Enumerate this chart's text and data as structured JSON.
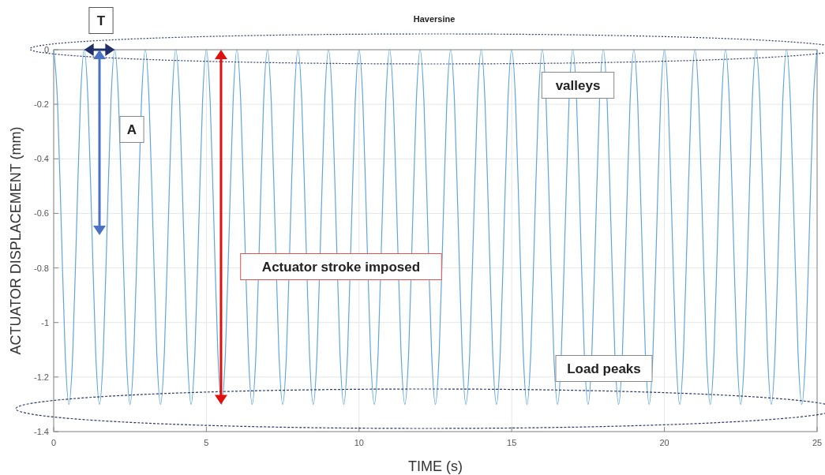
{
  "chart_data": {
    "type": "line",
    "xlabel": "TIME (s)",
    "ylabel": "ACTUATOR DISPLACEMENT (mm)",
    "xlim": [
      0,
      25
    ],
    "ylim": [
      -1.4,
      0
    ],
    "xticks": [
      0,
      5,
      10,
      15,
      20,
      25
    ],
    "yticks": [
      0,
      -0.2,
      -0.4,
      -0.6,
      -0.8,
      -1,
      -1.2,
      -1.4
    ],
    "grid": true,
    "annotations": [
      "T",
      "A",
      "Haversine",
      "valleys",
      "Actuator stroke imposed",
      "Load peaks"
    ],
    "series": [
      {
        "color": "#5fa6dc",
        "x": [
          0,
          0.125,
          0.25,
          0.375,
          0.5,
          0.625,
          0.75,
          0.875,
          1,
          1.125,
          1.25,
          1.375,
          1.5,
          1.625,
          1.75,
          1.875,
          2,
          2.125,
          2.25,
          2.375,
          2.5,
          2.625,
          2.75,
          2.875,
          3,
          3.125,
          3.25,
          3.375,
          3.5,
          3.625,
          3.75,
          3.875,
          4,
          4.125,
          4.25,
          4.375,
          4.5,
          4.625,
          4.75,
          4.875,
          5,
          5.125,
          5.25,
          5.375,
          5.5,
          5.625,
          5.75,
          5.875,
          6,
          6.125,
          6.25,
          6.375,
          6.5,
          6.625,
          6.75,
          6.875,
          7,
          7.125,
          7.25,
          7.375,
          7.5,
          7.625,
          7.75,
          7.875,
          8,
          8.125,
          8.25,
          8.375,
          8.5,
          8.625,
          8.75,
          8.875,
          9,
          9.125,
          9.25,
          9.375,
          9.5,
          9.625,
          9.75,
          9.875,
          10,
          10.125,
          10.25,
          10.375,
          10.5,
          10.625,
          10.75,
          10.875,
          11,
          11.125,
          11.25,
          11.375,
          11.5,
          11.625,
          11.75,
          11.875,
          12,
          12.125,
          12.25,
          12.375,
          12.5,
          12.625,
          12.75,
          12.875,
          13,
          13.125,
          13.25,
          13.375,
          13.5,
          13.625,
          13.75,
          13.875,
          14,
          14.125,
          14.25,
          14.375,
          14.5,
          14.625,
          14.75,
          14.875,
          15,
          15.125,
          15.25,
          15.375,
          15.5,
          15.625,
          15.75,
          15.875,
          16,
          16.125,
          16.25,
          16.375,
          16.5,
          16.625,
          16.75,
          16.875,
          17,
          17.125,
          17.25,
          17.375,
          17.5,
          17.625,
          17.75,
          17.875,
          18,
          18.125,
          18.25,
          18.375,
          18.5,
          18.625,
          18.75,
          18.875,
          19,
          19.125,
          19.25,
          19.375,
          19.5,
          19.625,
          19.75,
          19.875,
          20,
          20.125,
          20.25,
          20.375,
          20.5,
          20.625,
          20.75,
          20.875,
          21,
          21.125,
          21.25,
          21.375,
          21.5,
          21.625,
          21.75,
          21.875,
          22,
          22.125,
          22.25,
          22.375,
          22.5,
          22.625,
          22.75,
          22.875,
          23,
          23.125,
          23.25,
          23.375,
          23.5,
          23.625,
          23.75,
          23.875,
          24,
          24.125,
          24.25,
          24.375,
          24.5,
          24.625,
          24.75,
          24.875,
          25
        ],
        "values": [
          0,
          -0.19,
          -0.65,
          -1.11,
          -1.3,
          -1.11,
          -0.65,
          -0.19,
          0,
          -0.19,
          -0.65,
          -1.11,
          -1.3,
          -1.11,
          -0.65,
          -0.19,
          0,
          -0.19,
          -0.65,
          -1.11,
          -1.3,
          -1.11,
          -0.65,
          -0.19,
          0,
          -0.19,
          -0.65,
          -1.11,
          -1.3,
          -1.11,
          -0.65,
          -0.19,
          0,
          -0.19,
          -0.65,
          -1.11,
          -1.3,
          -1.11,
          -0.65,
          -0.19,
          0,
          -0.19,
          -0.65,
          -1.11,
          -1.3,
          -1.11,
          -0.65,
          -0.19,
          0,
          -0.19,
          -0.65,
          -1.11,
          -1.3,
          -1.11,
          -0.65,
          -0.19,
          0,
          -0.19,
          -0.65,
          -1.11,
          -1.3,
          -1.11,
          -0.65,
          -0.19,
          0,
          -0.19,
          -0.65,
          -1.11,
          -1.3,
          -1.11,
          -0.65,
          -0.19,
          0,
          -0.19,
          -0.65,
          -1.11,
          -1.3,
          -1.11,
          -0.65,
          -0.19,
          0,
          -0.19,
          -0.65,
          -1.11,
          -1.3,
          -1.11,
          -0.65,
          -0.19,
          0,
          -0.19,
          -0.65,
          -1.11,
          -1.3,
          -1.11,
          -0.65,
          -0.19,
          0,
          -0.19,
          -0.65,
          -1.11,
          -1.3,
          -1.11,
          -0.65,
          -0.19,
          0,
          -0.19,
          -0.65,
          -1.11,
          -1.3,
          -1.11,
          -0.65,
          -0.19,
          0,
          -0.19,
          -0.65,
          -1.11,
          -1.3,
          -1.11,
          -0.65,
          -0.19,
          0,
          -0.19,
          -0.65,
          -1.11,
          -1.3,
          -1.11,
          -0.65,
          -0.19,
          0,
          -0.19,
          -0.65,
          -1.11,
          -1.3,
          -1.11,
          -0.65,
          -0.19,
          0,
          -0.19,
          -0.65,
          -1.11,
          -1.3,
          -1.11,
          -0.65,
          -0.19,
          0,
          -0.19,
          -0.65,
          -1.11,
          -1.3,
          -1.11,
          -0.65,
          -0.19,
          0,
          -0.19,
          -0.65,
          -1.11,
          -1.3,
          -1.11,
          -0.65,
          -0.19,
          0,
          -0.19,
          -0.65,
          -1.11,
          -1.3,
          -1.11,
          -0.65,
          -0.19,
          0,
          -0.19,
          -0.65,
          -1.11,
          -1.3,
          -1.11,
          -0.65,
          -0.19,
          0,
          -0.19,
          -0.65,
          -1.11,
          -1.3,
          -1.11,
          -0.65,
          -0.19,
          0,
          -0.19,
          -0.65,
          -1.11,
          -1.3,
          -1.11,
          -0.65,
          -0.19,
          0,
          -0.19,
          -0.65,
          -1.11,
          -1.3,
          -1.11,
          -0.65,
          -0.19,
          0
        ]
      }
    ]
  }
}
